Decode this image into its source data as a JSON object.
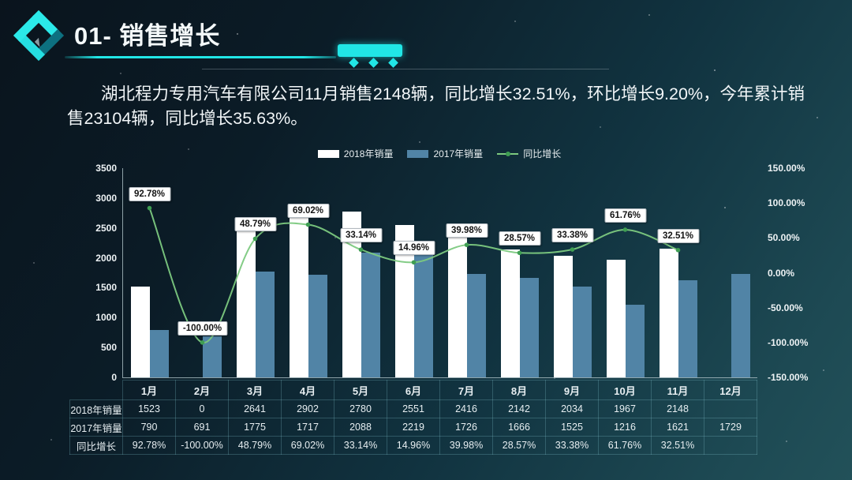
{
  "slide": {
    "title": "01- 销售增长",
    "summary": "湖北程力专用汽车有限公司11月销售2148辆，同比增长32.51%，环比增长9.20%，今年累计销售23104辆，同比增长35.63%。"
  },
  "colors": {
    "accent_cyan": "#21e6e6",
    "bar_2018": "#ffffff",
    "bar_2017": "#5184a6",
    "growth_line": "#7cc97f",
    "growth_marker": "#3f9e53",
    "background_dark": "#0b1824",
    "background_teal": "#1e4a54",
    "label_box_bg": "#ffffff",
    "label_box_text": "#141414"
  },
  "chart_data": {
    "type": "combo bar + line",
    "categories": [
      "1月",
      "2月",
      "3月",
      "4月",
      "5月",
      "6月",
      "7月",
      "8月",
      "9月",
      "10月",
      "11月",
      "12月"
    ],
    "series": [
      {
        "name": "2018年销量",
        "chart_type": "bar",
        "axis": "left",
        "color": "#ffffff",
        "values": [
          1523,
          0,
          2641,
          2902,
          2780,
          2551,
          2416,
          2142,
          2034,
          1967,
          2148,
          null
        ]
      },
      {
        "name": "2017年销量",
        "chart_type": "bar",
        "axis": "left",
        "color": "#5184a6",
        "values": [
          790,
          691,
          1775,
          1717,
          2088,
          2219,
          1726,
          1666,
          1525,
          1216,
          1621,
          1729
        ]
      },
      {
        "name": "同比增长",
        "chart_type": "line",
        "axis": "right",
        "color": "#7cc97f",
        "values": [
          92.78,
          -100.0,
          48.79,
          69.02,
          33.14,
          14.96,
          39.98,
          28.57,
          33.38,
          61.76,
          32.51,
          null
        ],
        "point_labels": [
          "92.78%",
          "-100.00%",
          "48.79%",
          "69.02%",
          "33.14%",
          "14.96%",
          "39.98%",
          "28.57%",
          "33.38%",
          "61.76%",
          "32.51%",
          null
        ]
      }
    ],
    "left_axis": {
      "min": 0,
      "max": 3500,
      "tick_step": 500,
      "ticks": [
        "3500",
        "3000",
        "2500",
        "2000",
        "1500",
        "1000",
        "500",
        "0"
      ]
    },
    "right_axis": {
      "min": -150,
      "max": 150,
      "tick_step": 50,
      "ticks": [
        "150.00%",
        "100.00%",
        "50.00%",
        "0.00%",
        "-50.00%",
        "-100.00%",
        "-150.00%"
      ]
    },
    "legend_position": "top",
    "grid": false
  },
  "table": {
    "columns": [
      "1月",
      "2月",
      "3月",
      "4月",
      "5月",
      "6月",
      "7月",
      "8月",
      "9月",
      "10月",
      "11月",
      "12月"
    ],
    "rows": [
      {
        "label": "2018年销量",
        "values": [
          "1523",
          "0",
          "2641",
          "2902",
          "2780",
          "2551",
          "2416",
          "2142",
          "2034",
          "1967",
          "2148",
          ""
        ]
      },
      {
        "label": "2017年销量",
        "values": [
          "790",
          "691",
          "1775",
          "1717",
          "2088",
          "2219",
          "1726",
          "1666",
          "1525",
          "1216",
          "1621",
          "1729"
        ]
      },
      {
        "label": "同比增长",
        "values": [
          "92.78%",
          "-100.00%",
          "48.79%",
          "69.02%",
          "33.14%",
          "14.96%",
          "39.98%",
          "28.57%",
          "33.38%",
          "61.76%",
          "32.51%",
          ""
        ]
      }
    ]
  }
}
